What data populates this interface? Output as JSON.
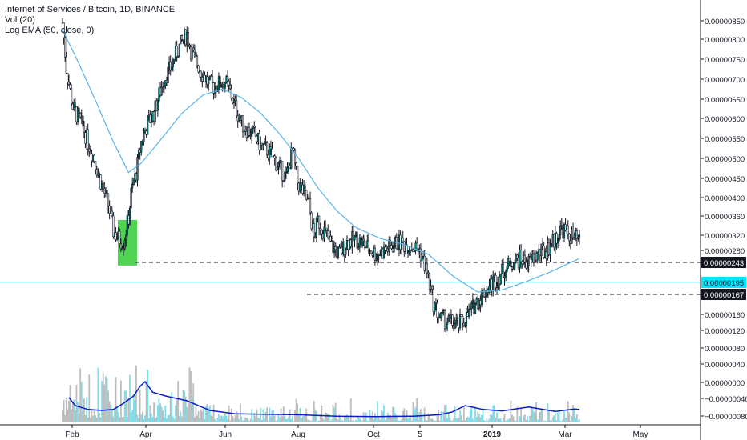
{
  "chart_data": {
    "type": "candlestick",
    "title": "Internet of Services / Bitcoin, 1D, BINANCE",
    "legend": {
      "title": "Internet of Services / Bitcoin, 1D, BINANCE",
      "volume": "Vol (20)",
      "ema": "Log EMA (50, close, 0)"
    },
    "price_axis": {
      "scale": "log",
      "ticks": [
        "0.00000850",
        "0.00000800",
        "0.00000750",
        "0.00000700",
        "0.00000650",
        "0.00000600",
        "0.00000550",
        "0.00000500",
        "0.00000450",
        "0.00000400",
        "0.00000360",
        "0.00000320",
        "0.00000280",
        "0.00000200",
        "0.00000160",
        "0.00000120",
        "0.00000080",
        "0.00000040",
        "0.00000000",
        "−0.00000040",
        "−0.00000080",
        "−0.00000120"
      ]
    },
    "time_axis": {
      "ticks": [
        "Feb",
        "Apr",
        "Jun",
        "Aug",
        "Oct",
        "5",
        "2019",
        "Mar",
        "May"
      ]
    },
    "levels": [
      {
        "value": "0.00000243",
        "style": "dashed",
        "color": "#131722"
      },
      {
        "value": "0.00000195",
        "style": "last-price",
        "color": "#00e5ff"
      },
      {
        "value": "0.00000167",
        "style": "dashed",
        "color": "#131722"
      }
    ],
    "highlight_box": {
      "color": "#33cc33",
      "period": "mid-Mar 2018",
      "range": [
        1.67e-06,
        2.26e-06
      ]
    },
    "price_path": [
      [
        "2018-01-24",
        8.4e-06
      ],
      [
        "2018-01-27",
        6.2e-06
      ],
      [
        "2018-02-01",
        4.8e-06
      ],
      [
        "2018-02-05",
        4.5e-06
      ],
      [
        "2018-02-09",
        4.2e-06
      ],
      [
        "2018-02-13",
        3.8e-06
      ],
      [
        "2018-02-18",
        3.4e-06
      ],
      [
        "2018-02-22",
        3e-06
      ],
      [
        "2018-02-26",
        2.7e-06
      ],
      [
        "2018-03-01",
        2.5e-06
      ],
      [
        "2018-03-05",
        2.1e-06
      ],
      [
        "2018-03-09",
        2e-06
      ],
      [
        "2018-03-13",
        1.95e-06
      ],
      [
        "2018-03-17",
        2.3e-06
      ],
      [
        "2018-03-19",
        2.7e-06
      ],
      [
        "2018-03-23",
        3.1e-06
      ],
      [
        "2018-03-27",
        3.8e-06
      ],
      [
        "2018-04-01",
        4.3e-06
      ],
      [
        "2018-04-06",
        4.6e-06
      ],
      [
        "2018-04-10",
        5.2e-06
      ],
      [
        "2018-04-14",
        5.8e-06
      ],
      [
        "2018-04-19",
        6.2e-06
      ],
      [
        "2018-04-23",
        6.8e-06
      ],
      [
        "2018-04-28",
        7.4e-06
      ],
      [
        "2018-05-02",
        7.8e-06
      ],
      [
        "2018-05-05",
        7e-06
      ],
      [
        "2018-05-09",
        6.5e-06
      ],
      [
        "2018-05-14",
        6e-06
      ],
      [
        "2018-05-19",
        5.6e-06
      ],
      [
        "2018-05-23",
        5.5e-06
      ],
      [
        "2018-05-27",
        5.6e-06
      ],
      [
        "2018-06-01",
        5.7e-06
      ],
      [
        "2018-06-05",
        5.3e-06
      ],
      [
        "2018-06-09",
        4.8e-06
      ],
      [
        "2018-06-14",
        4.3e-06
      ],
      [
        "2018-06-19",
        4.1e-06
      ],
      [
        "2018-06-24",
        4e-06
      ],
      [
        "2018-06-29",
        3.7e-06
      ],
      [
        "2018-07-04",
        3.6e-06
      ],
      [
        "2018-07-09",
        3.4e-06
      ],
      [
        "2018-07-14",
        3.2e-06
      ],
      [
        "2018-07-19",
        3e-06
      ],
      [
        "2018-07-24",
        3.6e-06
      ],
      [
        "2018-07-28",
        2.9e-06
      ],
      [
        "2018-08-02",
        2.7e-06
      ],
      [
        "2018-08-06",
        2.5e-06
      ],
      [
        "2018-08-10",
        2e-06
      ],
      [
        "2018-08-13",
        2.25e-06
      ],
      [
        "2018-08-18",
        2.1e-06
      ],
      [
        "2018-08-24",
        1.9e-06
      ],
      [
        "2018-08-30",
        1.8e-06
      ],
      [
        "2018-09-05",
        1.95e-06
      ],
      [
        "2018-09-12",
        2e-06
      ],
      [
        "2018-09-20",
        1.9e-06
      ],
      [
        "2018-09-28",
        1.8e-06
      ],
      [
        "2018-10-05",
        1.85e-06
      ],
      [
        "2018-10-15",
        1.95e-06
      ],
      [
        "2018-10-25",
        1.9e-06
      ],
      [
        "2018-11-01",
        1.85e-06
      ],
      [
        "2018-11-07",
        1.6e-06
      ],
      [
        "2018-11-12",
        1.3e-06
      ],
      [
        "2018-11-17",
        1.18e-06
      ],
      [
        "2018-11-24",
        1.15e-06
      ],
      [
        "2018-12-01",
        1.12e-06
      ],
      [
        "2018-12-08",
        1.18e-06
      ],
      [
        "2018-12-15",
        1.3e-06
      ],
      [
        "2018-12-22",
        1.4e-06
      ],
      [
        "2018-12-29",
        1.5e-06
      ],
      [
        "2019-01-05",
        1.6e-06
      ],
      [
        "2019-01-12",
        1.7e-06
      ],
      [
        "2019-01-19",
        1.75e-06
      ],
      [
        "2019-01-26",
        1.7e-06
      ],
      [
        "2019-02-02",
        1.8e-06
      ],
      [
        "2019-02-09",
        1.85e-06
      ],
      [
        "2019-02-16",
        2e-06
      ],
      [
        "2019-02-21",
        2.15e-06
      ],
      [
        "2019-02-26",
        2.05e-06
      ],
      [
        "2019-03-03",
        2e-06
      ],
      [
        "2019-03-07",
        1.95e-06
      ]
    ],
    "ema_path": [
      [
        "2018-01-24",
        8e-06
      ],
      [
        "2018-02-05",
        6.5e-06
      ],
      [
        "2018-02-19",
        5e-06
      ],
      [
        "2018-03-05",
        3.8e-06
      ],
      [
        "2018-03-17",
        3.1e-06
      ],
      [
        "2018-03-27",
        3.3e-06
      ],
      [
        "2018-04-10",
        3.8e-06
      ],
      [
        "2018-04-28",
        4.6e-06
      ],
      [
        "2018-05-15",
        5.2e-06
      ],
      [
        "2018-05-30",
        5.4e-06
      ],
      [
        "2018-06-14",
        5.1e-06
      ],
      [
        "2018-06-29",
        4.6e-06
      ],
      [
        "2018-07-14",
        4e-06
      ],
      [
        "2018-07-29",
        3.4e-06
      ],
      [
        "2018-08-13",
        2.8e-06
      ],
      [
        "2018-08-28",
        2.4e-06
      ],
      [
        "2018-09-12",
        2.15e-06
      ],
      [
        "2018-10-01",
        2e-06
      ],
      [
        "2018-10-20",
        1.92e-06
      ],
      [
        "2018-11-08",
        1.8e-06
      ],
      [
        "2018-11-28",
        1.55e-06
      ],
      [
        "2018-12-17",
        1.4e-06
      ],
      [
        "2019-01-05",
        1.42e-06
      ],
      [
        "2019-01-24",
        1.5e-06
      ],
      [
        "2019-02-12",
        1.6e-06
      ],
      [
        "2019-03-07",
        1.75e-06
      ]
    ],
    "volume_ma_path": [
      [
        "2018-01-29",
        0.52
      ],
      [
        "2018-02-03",
        0.35
      ],
      [
        "2018-02-13",
        0.27
      ],
      [
        "2018-02-24",
        0.25
      ],
      [
        "2018-03-05",
        0.27
      ],
      [
        "2018-03-12",
        0.38
      ],
      [
        "2018-03-21",
        0.55
      ],
      [
        "2018-03-26",
        0.75
      ],
      [
        "2018-03-30",
        0.85
      ],
      [
        "2018-04-05",
        0.63
      ],
      [
        "2018-04-15",
        0.55
      ],
      [
        "2018-05-02",
        0.45
      ],
      [
        "2018-05-20",
        0.25
      ],
      [
        "2018-06-09",
        0.18
      ],
      [
        "2018-07-01",
        0.17
      ],
      [
        "2018-07-29",
        0.16
      ],
      [
        "2018-08-28",
        0.13
      ],
      [
        "2018-09-27",
        0.12
      ],
      [
        "2018-10-27",
        0.13
      ],
      [
        "2018-11-17",
        0.16
      ],
      [
        "2018-11-27",
        0.22
      ],
      [
        "2018-12-07",
        0.35
      ],
      [
        "2018-12-21",
        0.27
      ],
      [
        "2019-01-05",
        0.24
      ],
      [
        "2019-01-26",
        0.32
      ],
      [
        "2019-02-16",
        0.23
      ],
      [
        "2019-03-03",
        0.28
      ],
      [
        "2019-03-07",
        0.27
      ]
    ],
    "colors": {
      "up": "#131722",
      "down": "#131722",
      "up_body": "#00897b",
      "down_body": "#ffffff",
      "ema": "#5ab4e8",
      "volume_ma": "#0a1ec8",
      "volume_up": "#80deea",
      "volume_down": "#bdbdbd",
      "axis_text": "#131722"
    }
  }
}
